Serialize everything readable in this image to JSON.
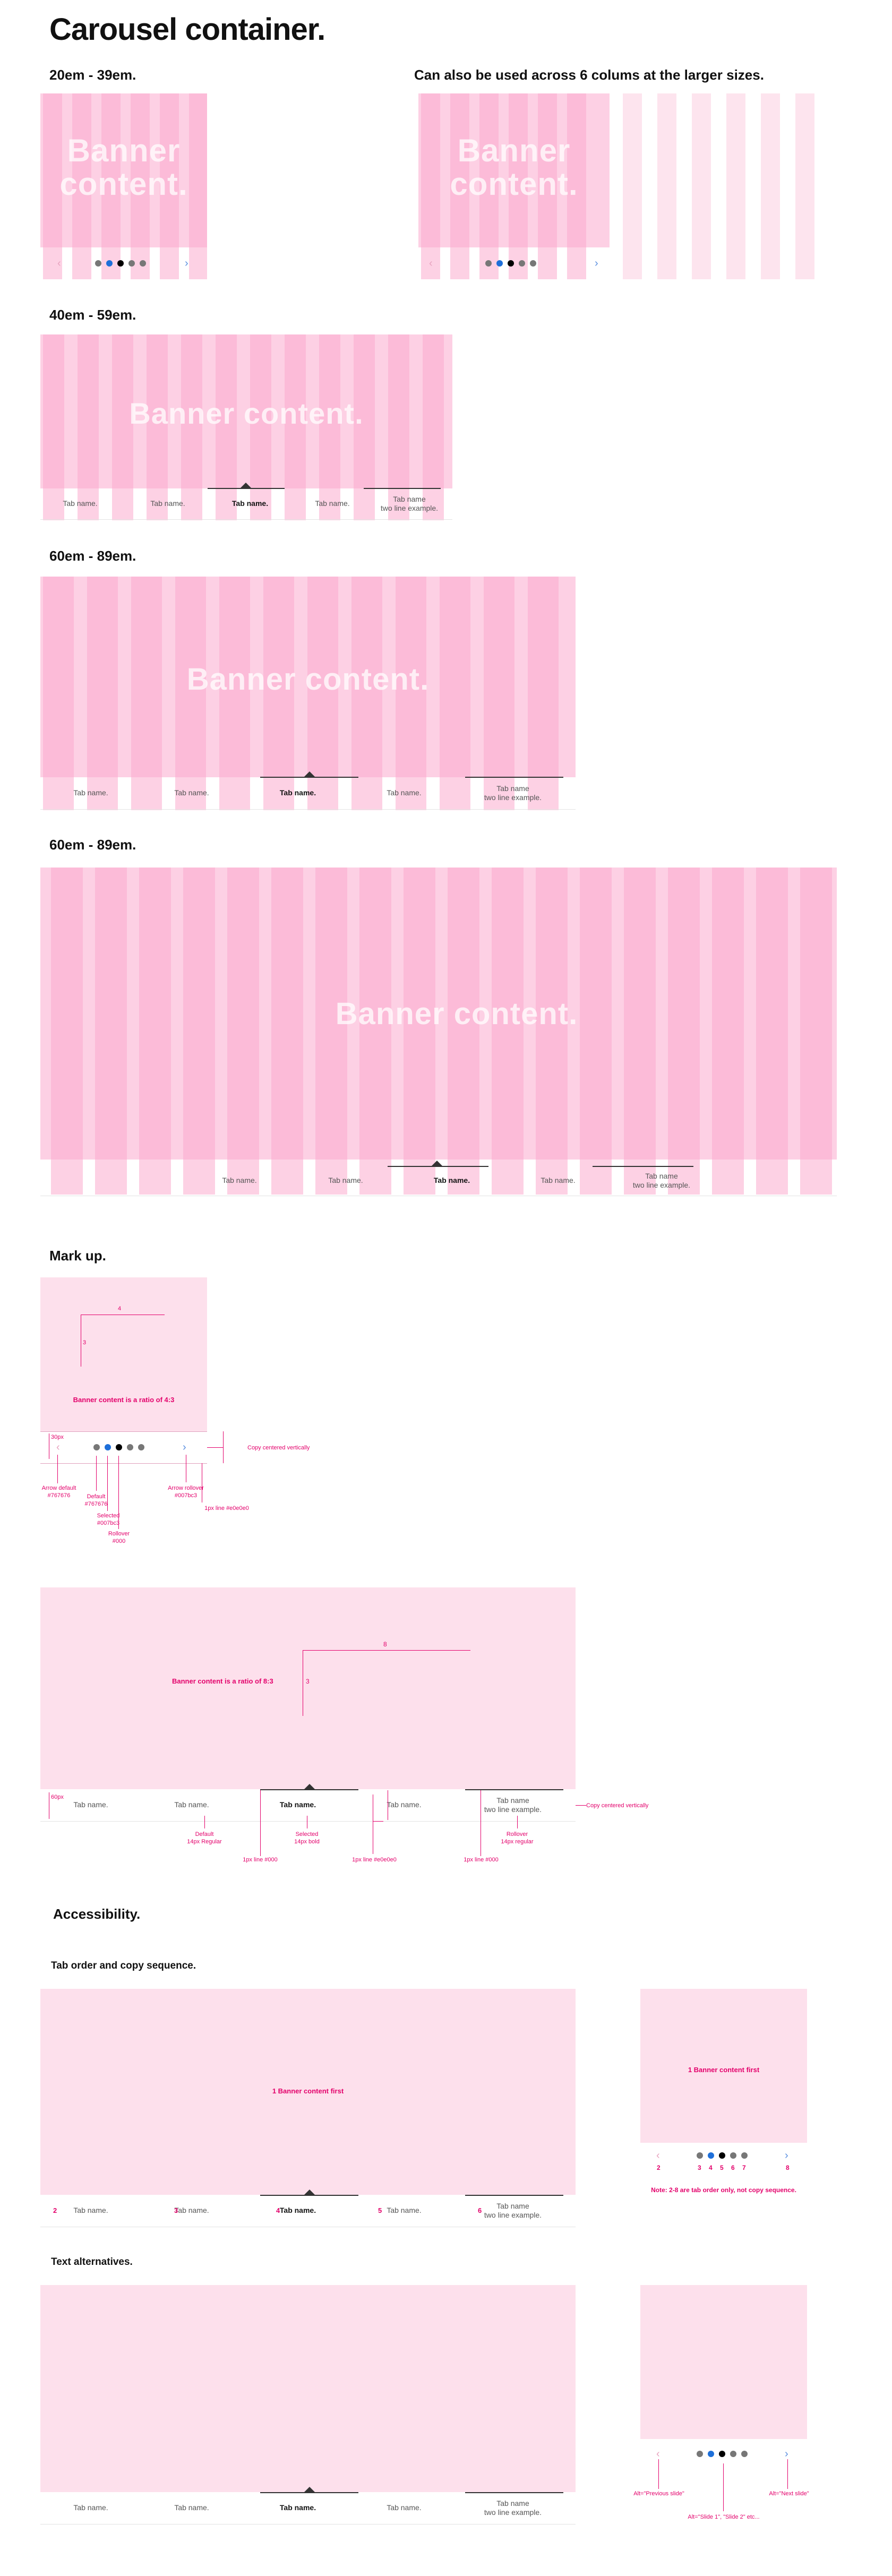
{
  "title": "Carousel container.",
  "sections": {
    "s1": "20em - 39em.",
    "s2": "Can also be used across 6 colums at the larger sizes.",
    "s3": "40em - 59em.",
    "s4": "60em - 89em.",
    "s5": "60em - 89em.",
    "markup": "Mark up.",
    "accessibility": "Accessibility.",
    "tab_order": "Tab order and copy sequence.",
    "text_alt": "Text alternatives."
  },
  "banner": {
    "two_line": "Banner\ncontent.",
    "one_line": "Banner content."
  },
  "nav": {
    "prev_arrow": "‹",
    "next_arrow": "›"
  },
  "tabs": {
    "t1": "Tab name.",
    "t2": "Tab name.",
    "t3": "Tab name.",
    "t4": "Tab name.",
    "t5": "Tab name\ntwo line example."
  },
  "markup_small": {
    "ratio": "Banner content is a ratio of 4:3",
    "w": "4",
    "h": "3",
    "height_label": "30px",
    "arrow_default": "Arrow default\n#767676",
    "default_dot": "Default\n#767676",
    "selected_dot": "Selected\n#007bc3",
    "rollover_dot": "Rollover\n#000",
    "arrow_rollover": "Arrow rollover\n#007bc3",
    "rule": "1px line #e0e0e0",
    "copy_centered": "Copy centered vertically"
  },
  "markup_large": {
    "ratio": "Banner content is a ratio of 8:3",
    "w": "8",
    "h": "3",
    "height_label": "60px",
    "default": "Default\n14px Regular",
    "selected": "Selected\n14px bold",
    "rollover": "Rollover\n14px regular",
    "line_000_a": "1px line #000",
    "line_e0": "1px line #e0e0e0",
    "line_000_b": "1px line #000",
    "copy_centered": "Copy centered vertically"
  },
  "accessibility": {
    "banner_first": "1 Banner content first",
    "tab_numbers": [
      "2",
      "3",
      "4",
      "5",
      "6"
    ],
    "small_banner_first": "1 Banner content first",
    "small_numbers": [
      "2",
      "3",
      "4",
      "5",
      "6",
      "7",
      "8"
    ],
    "note": "Note: 2-8 are tab order only, not copy sequence."
  },
  "alt": {
    "prev": "Alt=\"Previous slide\"",
    "next": "Alt=\"Next slide\"",
    "slides": "Alt=\"Slide 1\", \"Slide 2\" etc..."
  },
  "colors": {
    "column": "#fdd1e4",
    "band": "#fcaacd",
    "annotation": "#e3006b",
    "selected_dot": "#1e6fd9"
  }
}
